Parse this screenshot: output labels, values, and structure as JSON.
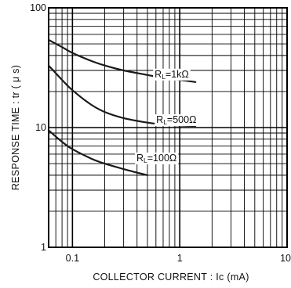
{
  "chart_data": {
    "type": "line",
    "title": "",
    "xlabel": "COLLECTOR  CURRENT : Ic  (mA)",
    "ylabel": "RESPONSE  TIME : tr ( μ s)",
    "x_scale": "log",
    "y_scale": "log",
    "xlim": [
      0.06,
      10
    ],
    "ylim": [
      1,
      100
    ],
    "x_tick_labels": [
      "0.1",
      "1",
      "10"
    ],
    "y_tick_labels": [
      "1",
      "10",
      "100"
    ],
    "grid": true,
    "series": [
      {
        "name": "RL=1kΩ",
        "label_main": "R",
        "label_sub": "L",
        "label_rest": "=1kΩ",
        "x": [
          0.06,
          0.08,
          0.1,
          0.15,
          0.2,
          0.3,
          0.5,
          0.7,
          1.0,
          1.4
        ],
        "y": [
          54,
          47,
          42,
          36,
          33,
          30,
          27.5,
          26,
          25,
          24
        ]
      },
      {
        "name": "RL=500Ω",
        "label_main": "R",
        "label_sub": "L",
        "label_rest": "=500Ω",
        "x": [
          0.06,
          0.08,
          0.1,
          0.15,
          0.2,
          0.3,
          0.5,
          0.7,
          1.0,
          1.4
        ],
        "y": [
          33,
          25,
          20.5,
          15.5,
          13.5,
          12,
          11,
          10.6,
          10.4,
          10.3
        ]
      },
      {
        "name": "RL=100Ω",
        "label_main": "R",
        "label_sub": "L",
        "label_rest": "=100Ω",
        "x": [
          0.06,
          0.08,
          0.1,
          0.15,
          0.2,
          0.3,
          0.4,
          0.5
        ],
        "y": [
          9.5,
          7.6,
          6.6,
          5.5,
          5.0,
          4.5,
          4.2,
          4.0
        ]
      }
    ]
  }
}
